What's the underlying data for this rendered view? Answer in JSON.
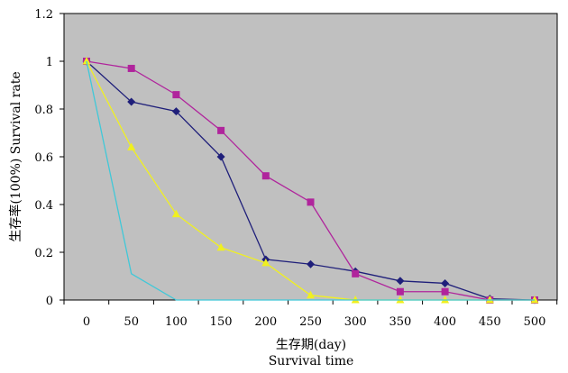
{
  "chart_data": {
    "type": "line",
    "title": "",
    "xlabel": "生存期(day)",
    "xlabel_sub": "Survival time",
    "ylabel": "生存率(100%) Survival rate",
    "x": [
      0,
      50,
      100,
      150,
      200,
      250,
      300,
      350,
      400,
      450,
      500
    ],
    "x_tick_labels": [
      "0",
      "50",
      "100",
      "150",
      "200",
      "250",
      "300",
      "350",
      "400",
      "450",
      "500"
    ],
    "y_ticks": [
      0,
      0.2,
      0.4,
      0.6,
      0.8,
      1,
      1.2
    ],
    "y_tick_labels": [
      "0",
      "0.2",
      "0.4",
      "0.6",
      "0.8",
      "1",
      "1.2"
    ],
    "ylim": [
      0,
      1.2
    ],
    "grid": false,
    "plot_background": "#c0c0c0",
    "series": [
      {
        "name": "series-1",
        "color": "#1f1f7a",
        "marker": "diamond",
        "values": [
          1.0,
          0.83,
          0.79,
          0.6,
          0.17,
          0.15,
          0.12,
          0.08,
          0.07,
          0.005,
          0.0
        ]
      },
      {
        "name": "series-2",
        "color": "#b0249c",
        "marker": "square",
        "values": [
          1.0,
          0.97,
          0.86,
          0.71,
          0.52,
          0.41,
          0.11,
          0.035,
          0.035,
          0.0,
          0.0
        ]
      },
      {
        "name": "series-3",
        "color": "#f0f020",
        "marker": "triangle",
        "values": [
          1.0,
          0.64,
          0.36,
          0.22,
          0.155,
          0.02,
          0.0,
          0.0,
          0.0,
          0.0,
          0.0
        ]
      },
      {
        "name": "series-4",
        "color": "#40c8d8",
        "marker": "none",
        "x": [
          0,
          50,
          100,
          150,
          200,
          250,
          300,
          350,
          400,
          450,
          500
        ],
        "values": [
          1.0,
          0.11,
          0.0,
          0.0,
          0.0,
          0.0,
          0.0,
          0.0,
          0.0,
          0.0,
          0.0
        ]
      }
    ]
  }
}
